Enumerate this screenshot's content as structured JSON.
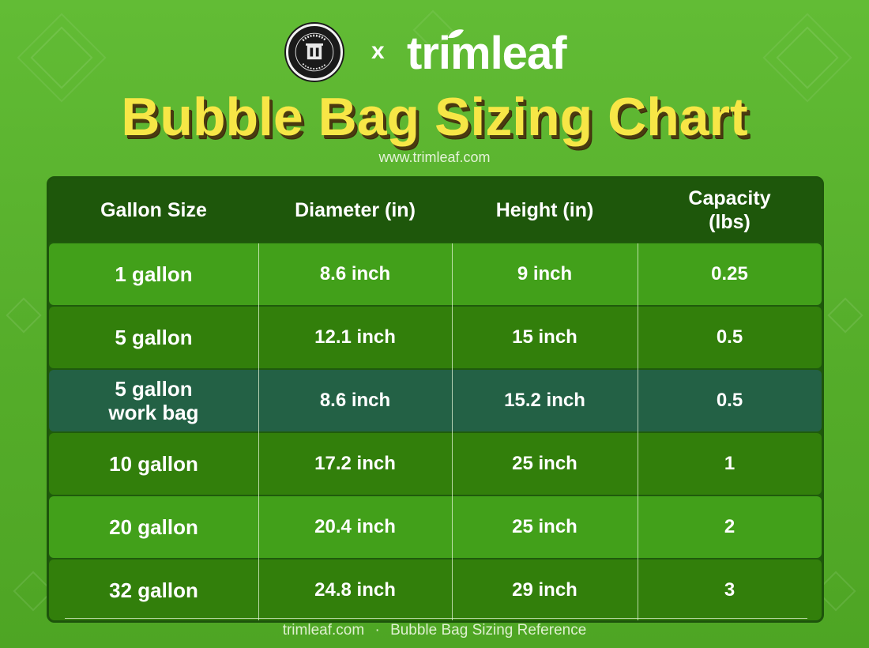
{
  "header": {
    "partner_logo_text": "GLENSIDE'S DANK PRESSING CO. · PRESS TO PERFECTION",
    "times_symbol": "x",
    "brand": "trimleaf",
    "title": "Bubble Bag Sizing Chart",
    "url": "www.trimleaf.com"
  },
  "colors": {
    "title_yellow": "#f7e646",
    "background_green": "#5cb530",
    "header_row": "#1e570b",
    "row_light": "#42a01a",
    "row_dark": "#327f0b",
    "row_highlight": "#236145"
  },
  "table": {
    "headers": [
      "Gallon Size",
      "Diameter (in)",
      "Height (in)",
      "Capacity\n(lbs)"
    ],
    "rows": [
      {
        "size": "1 gallon",
        "diameter": "8.6 inch",
        "height": "9 inch",
        "capacity": "0.25"
      },
      {
        "size": "5 gallon",
        "diameter": "12.1 inch",
        "height": "15 inch",
        "capacity": "0.5"
      },
      {
        "size": "5 gallon\nwork bag",
        "diameter": "8.6 inch",
        "height": "15.2 inch",
        "capacity": "0.5"
      },
      {
        "size": "10 gallon",
        "diameter": "17.2 inch",
        "height": "25 inch",
        "capacity": "1"
      },
      {
        "size": "20 gallon",
        "diameter": "20.4 inch",
        "height": "25 inch",
        "capacity": "2"
      },
      {
        "size": "32 gallon",
        "diameter": "24.8 inch",
        "height": "29 inch",
        "capacity": "3"
      }
    ]
  },
  "footer": {
    "site": "trimleaf.com",
    "separator": "·",
    "label": "Bubble Bag Sizing Reference"
  }
}
